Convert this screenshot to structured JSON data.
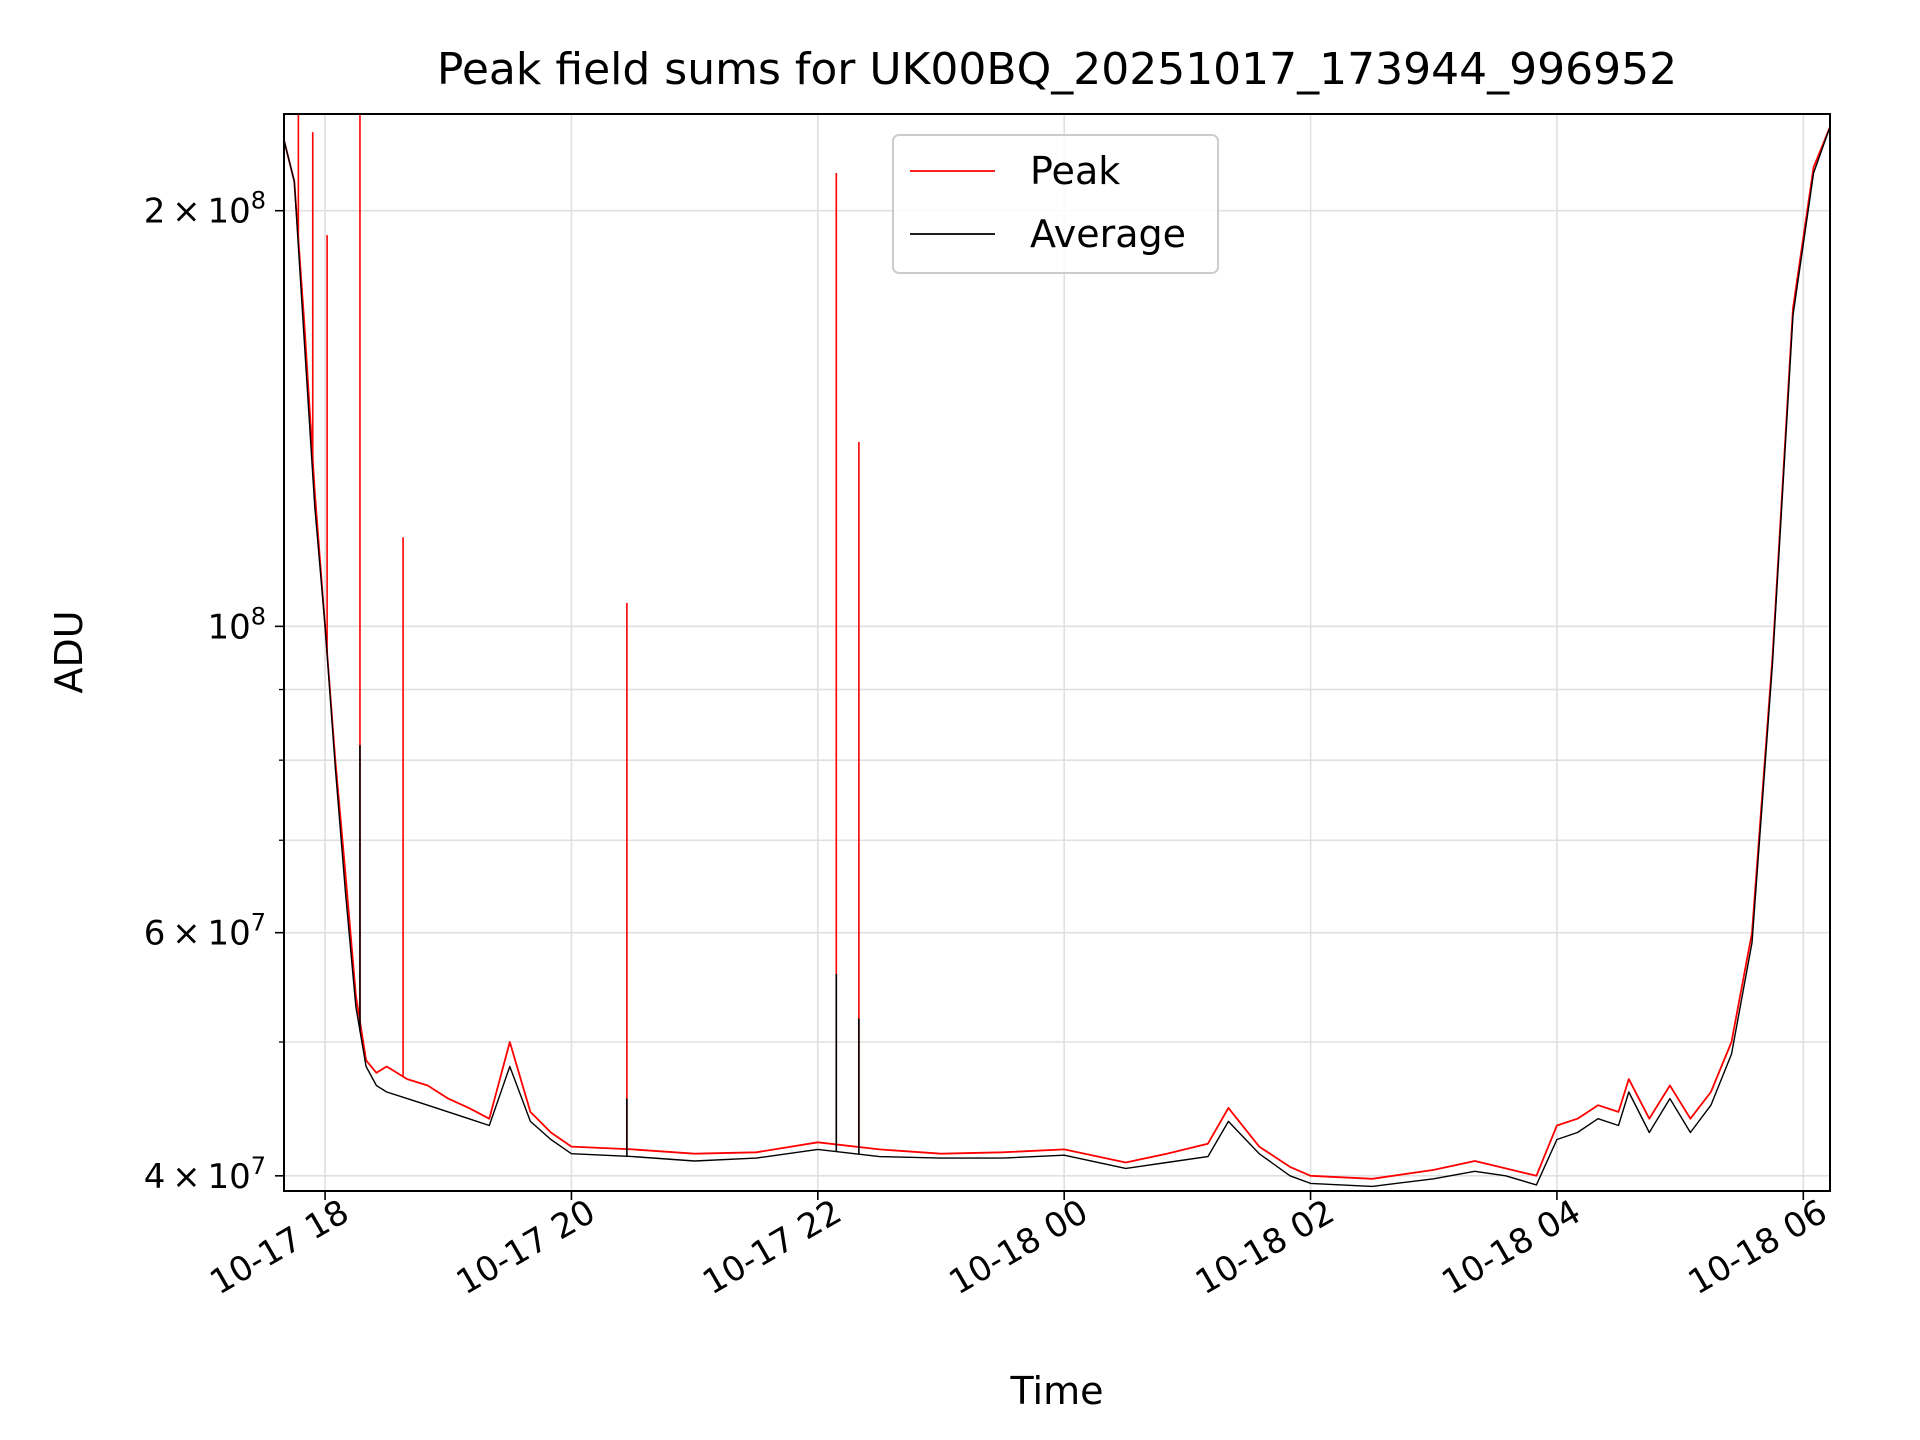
{
  "chart_data": {
    "type": "line",
    "title": "Peak field sums for UK00BQ_20251017_173944_996952",
    "xlabel": "Time",
    "ylabel": "ADU",
    "yscale": "log",
    "xlim": [
      "2025-10-17T17:40",
      "2025-10-18T06:13"
    ],
    "ylim": [
      39000000,
      235000000
    ],
    "grid": true,
    "legend_position": "upper center",
    "x_ticks": [
      {
        "value": "2025-10-17T18:00",
        "label": "10-17 18"
      },
      {
        "value": "2025-10-17T20:00",
        "label": "10-17 20"
      },
      {
        "value": "2025-10-17T22:00",
        "label": "10-17 22"
      },
      {
        "value": "2025-10-18T00:00",
        "label": "10-18 00"
      },
      {
        "value": "2025-10-18T02:00",
        "label": "10-18 02"
      },
      {
        "value": "2025-10-18T04:00",
        "label": "10-18 04"
      },
      {
        "value": "2025-10-18T06:00",
        "label": "10-18 06"
      }
    ],
    "y_ticks": [
      {
        "value": 40000000,
        "mantissa": "4",
        "exponent": "7"
      },
      {
        "value": 60000000,
        "mantissa": "6",
        "exponent": "7"
      },
      {
        "value": 100000000,
        "mantissa": "",
        "exponent": "8"
      },
      {
        "value": 200000000,
        "mantissa": "2",
        "exponent": "8"
      }
    ],
    "y_minor_ticks": [
      50000000,
      70000000,
      80000000,
      90000000
    ],
    "series": [
      {
        "name": "Peak",
        "color": "#ff0000",
        "x": [
          "2025-10-17T17:40",
          "2025-10-17T17:45",
          "2025-10-17T17:50",
          "2025-10-17T17:55",
          "2025-10-17T18:00",
          "2025-10-17T18:05",
          "2025-10-17T18:10",
          "2025-10-17T18:15",
          "2025-10-17T18:20",
          "2025-10-17T18:25",
          "2025-10-17T18:30",
          "2025-10-17T18:40",
          "2025-10-17T18:50",
          "2025-10-17T19:00",
          "2025-10-17T19:10",
          "2025-10-17T19:20",
          "2025-10-17T19:30",
          "2025-10-17T19:40",
          "2025-10-17T19:50",
          "2025-10-17T20:00",
          "2025-10-17T20:30",
          "2025-10-17T21:00",
          "2025-10-17T21:30",
          "2025-10-17T22:00",
          "2025-10-17T22:30",
          "2025-10-17T23:00",
          "2025-10-17T23:30",
          "2025-10-18T00:00",
          "2025-10-18T00:30",
          "2025-10-18T00:50",
          "2025-10-18T01:10",
          "2025-10-18T01:20",
          "2025-10-18T01:35",
          "2025-10-18T01:50",
          "2025-10-18T02:00",
          "2025-10-18T02:30",
          "2025-10-18T03:00",
          "2025-10-18T03:20",
          "2025-10-18T03:35",
          "2025-10-18T03:50",
          "2025-10-18T04:00",
          "2025-10-18T04:10",
          "2025-10-18T04:20",
          "2025-10-18T04:30",
          "2025-10-18T04:35",
          "2025-10-18T04:45",
          "2025-10-18T04:55",
          "2025-10-18T05:05",
          "2025-10-18T05:15",
          "2025-10-18T05:25",
          "2025-10-18T05:35",
          "2025-10-18T05:45",
          "2025-10-18T05:55",
          "2025-10-18T06:05",
          "2025-10-18T06:13"
        ],
        "y": [
          225000000,
          210000000,
          165000000,
          125000000,
          100000000,
          80000000,
          66000000,
          54000000,
          48500000,
          47500000,
          48000000,
          47000000,
          46500000,
          45500000,
          44800000,
          44000000,
          50000000,
          44500000,
          43000000,
          42000000,
          41800000,
          41500000,
          41600000,
          42300000,
          41800000,
          41500000,
          41600000,
          41800000,
          40900000,
          41500000,
          42200000,
          44800000,
          42000000,
          40600000,
          40000000,
          39800000,
          40400000,
          41000000,
          40500000,
          40000000,
          43500000,
          44000000,
          45000000,
          44500000,
          47000000,
          44000000,
          46500000,
          44000000,
          46000000,
          50000000,
          60000000,
          95000000,
          170000000,
          215000000,
          230000000
        ],
        "spikes": [
          {
            "x": "2025-10-17T17:47",
            "y": 240000000
          },
          {
            "x": "2025-10-17T17:54",
            "y": 228000000
          },
          {
            "x": "2025-10-17T18:01",
            "y": 192000000
          },
          {
            "x": "2025-10-17T18:17",
            "y": 240000000
          },
          {
            "x": "2025-10-17T18:38",
            "y": 116000000
          },
          {
            "x": "2025-10-17T20:27",
            "y": 104000000
          },
          {
            "x": "2025-10-17T22:09",
            "y": 213000000
          },
          {
            "x": "2025-10-17T22:20",
            "y": 136000000
          }
        ]
      },
      {
        "name": "Average",
        "color": "#000000",
        "x": [
          "2025-10-17T17:40",
          "2025-10-17T17:45",
          "2025-10-17T17:50",
          "2025-10-17T17:55",
          "2025-10-17T18:00",
          "2025-10-17T18:05",
          "2025-10-17T18:10",
          "2025-10-17T18:15",
          "2025-10-17T18:20",
          "2025-10-17T18:25",
          "2025-10-17T18:30",
          "2025-10-17T18:40",
          "2025-10-17T18:50",
          "2025-10-17T19:00",
          "2025-10-17T19:10",
          "2025-10-17T19:20",
          "2025-10-17T19:30",
          "2025-10-17T19:40",
          "2025-10-17T19:50",
          "2025-10-17T20:00",
          "2025-10-17T20:30",
          "2025-10-17T21:00",
          "2025-10-17T21:30",
          "2025-10-17T22:00",
          "2025-10-17T22:30",
          "2025-10-17T23:00",
          "2025-10-17T23:30",
          "2025-10-18T00:00",
          "2025-10-18T00:30",
          "2025-10-18T00:50",
          "2025-10-18T01:10",
          "2025-10-18T01:20",
          "2025-10-18T01:35",
          "2025-10-18T01:50",
          "2025-10-18T02:00",
          "2025-10-18T02:30",
          "2025-10-18T03:00",
          "2025-10-18T03:20",
          "2025-10-18T03:35",
          "2025-10-18T03:50",
          "2025-10-18T04:00",
          "2025-10-18T04:10",
          "2025-10-18T04:20",
          "2025-10-18T04:30",
          "2025-10-18T04:35",
          "2025-10-18T04:45",
          "2025-10-18T04:55",
          "2025-10-18T05:05",
          "2025-10-18T05:15",
          "2025-10-18T05:25",
          "2025-10-18T05:35",
          "2025-10-18T05:45",
          "2025-10-18T05:55",
          "2025-10-18T06:05",
          "2025-10-18T06:13"
        ],
        "y": [
          225000000,
          210000000,
          160000000,
          122000000,
          100000000,
          79000000,
          64000000,
          53000000,
          48000000,
          46500000,
          46000000,
          45500000,
          45000000,
          44500000,
          44000000,
          43500000,
          48000000,
          43800000,
          42500000,
          41500000,
          41300000,
          41000000,
          41200000,
          41800000,
          41300000,
          41200000,
          41200000,
          41400000,
          40500000,
          40900000,
          41300000,
          43800000,
          41500000,
          40000000,
          39500000,
          39300000,
          39800000,
          40300000,
          40000000,
          39400000,
          42500000,
          43000000,
          44000000,
          43500000,
          46000000,
          43000000,
          45500000,
          43000000,
          45000000,
          49000000,
          59000000,
          94000000,
          168000000,
          213000000,
          230000000
        ],
        "spikes": [
          {
            "x": "2025-10-17T18:17",
            "y": 82000000
          },
          {
            "x": "2025-10-17T22:09",
            "y": 56000000
          },
          {
            "x": "2025-10-17T22:20",
            "y": 52000000
          },
          {
            "x": "2025-10-17T20:27",
            "y": 45500000
          }
        ]
      }
    ]
  }
}
